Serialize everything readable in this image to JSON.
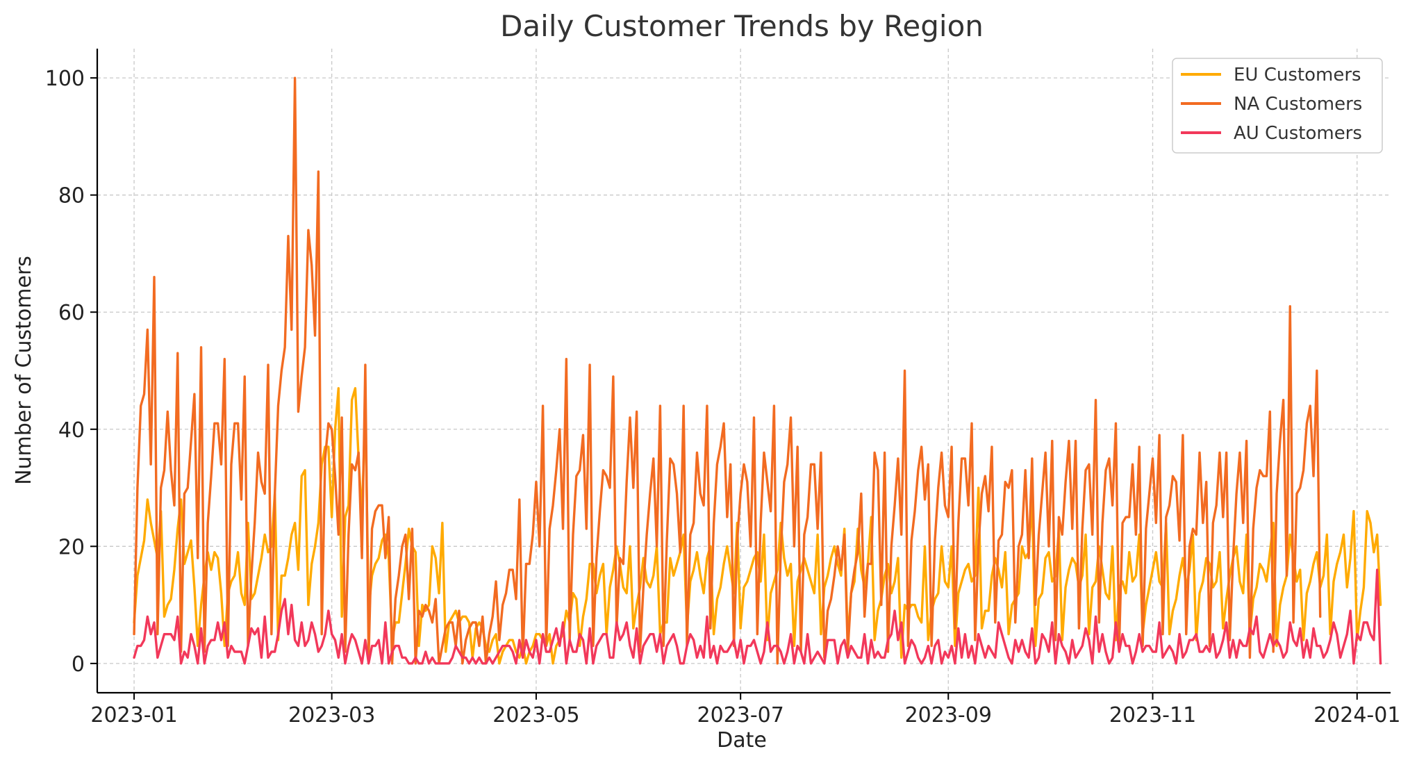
{
  "chart_data": {
    "type": "line",
    "title": "Daily Customer Trends by Region",
    "xlabel": "Date",
    "ylabel": "Number of Customers",
    "x_axis": "date",
    "xlim": [
      "2022-12-21",
      "2024-01-11"
    ],
    "ylim": [
      -5,
      105
    ],
    "x_ticks": [
      "2023-01-01",
      "2023-03-01",
      "2023-05-01",
      "2023-07-01",
      "2023-09-01",
      "2023-11-01",
      "2024-01-01"
    ],
    "x_tick_labels": [
      "2023-01",
      "2023-03",
      "2023-05",
      "2023-07",
      "2023-09",
      "2023-11",
      "2024-01"
    ],
    "y_ticks": [
      0,
      20,
      40,
      60,
      80,
      100
    ],
    "y_tick_labels": [
      "0",
      "20",
      "40",
      "60",
      "80",
      "100"
    ],
    "grid": true,
    "legend_position": "top-right",
    "x_start": "2023-01-01",
    "x_step": "1 day",
    "series": [
      {
        "name": "EU Customers",
        "color": "#FFAA00",
        "values": [
          7,
          15,
          18,
          21,
          28,
          24,
          21,
          18,
          26,
          8,
          10,
          11,
          16,
          23,
          28,
          17,
          19,
          21,
          13,
          3,
          10,
          15,
          19,
          16,
          19,
          18,
          12,
          3,
          12,
          14,
          15,
          19,
          12,
          10,
          24,
          11,
          12,
          15,
          18,
          22,
          19,
          20,
          29,
          4,
          15,
          15,
          18,
          22,
          24,
          16,
          32,
          33,
          10,
          17,
          20,
          24,
          34,
          37,
          37,
          25,
          40,
          47,
          8,
          25,
          27,
          45,
          47,
          35,
          25,
          44,
          9,
          15,
          17,
          18,
          21,
          22,
          18,
          4,
          7,
          7,
          12,
          17,
          23,
          20,
          19,
          3,
          10,
          9,
          10,
          20,
          18,
          12,
          24,
          2,
          7,
          8,
          9,
          7,
          8,
          8,
          7,
          1,
          6,
          7,
          6,
          3,
          2,
          4,
          5,
          0,
          2,
          3,
          4,
          4,
          2,
          1,
          3,
          0,
          2,
          3,
          5,
          5,
          4,
          3,
          5,
          0,
          3,
          4,
          5,
          9,
          7,
          12,
          11,
          3,
          8,
          11,
          17,
          17,
          12,
          15,
          17,
          5,
          13,
          16,
          20,
          17,
          13,
          12,
          20,
          6,
          10,
          13,
          18,
          14,
          13,
          15,
          20,
          5,
          7,
          7,
          18,
          15,
          17,
          19,
          22,
          6,
          14,
          16,
          19,
          15,
          12,
          18,
          20,
          5,
          11,
          13,
          17,
          20,
          16,
          12,
          24,
          6,
          13,
          14,
          16,
          18,
          19,
          14,
          22,
          4,
          12,
          14,
          16,
          24,
          18,
          15,
          17,
          3,
          14,
          16,
          18,
          16,
          14,
          12,
          22,
          5,
          13,
          15,
          18,
          20,
          17,
          15,
          23,
          4,
          12,
          14,
          23,
          16,
          13,
          17,
          25,
          4,
          9,
          11,
          15,
          17,
          12,
          14,
          18,
          1,
          10,
          9,
          10,
          10,
          8,
          7,
          20,
          4,
          9,
          11,
          12,
          20,
          14,
          13,
          20,
          3,
          12,
          14,
          16,
          17,
          14,
          15,
          30,
          6,
          9,
          9,
          15,
          18,
          16,
          13,
          19,
          5,
          10,
          11,
          12,
          20,
          18,
          19,
          28,
          3,
          11,
          12,
          18,
          19,
          14,
          15,
          23,
          4,
          13,
          16,
          18,
          17,
          13,
          15,
          22,
          5,
          13,
          14,
          20,
          16,
          12,
          11,
          20,
          4,
          13,
          14,
          12,
          19,
          14,
          15,
          22,
          5,
          10,
          13,
          16,
          19,
          14,
          13,
          24,
          5,
          9,
          11,
          15,
          18,
          13,
          16,
          22,
          4,
          12,
          14,
          18,
          17,
          13,
          14,
          19,
          6,
          11,
          15,
          18,
          20,
          14,
          12,
          22,
          5,
          11,
          13,
          17,
          16,
          14,
          19,
          24,
          3,
          10,
          13,
          15,
          22,
          18,
          14,
          16,
          4,
          12,
          14,
          17,
          19,
          13,
          15,
          22,
          5,
          14,
          17,
          19,
          22,
          13,
          18,
          26,
          4,
          9,
          13,
          26,
          24,
          19,
          22,
          10
        ]
      },
      {
        "name": "NA Customers",
        "color": "#F26B21",
        "values": [
          5,
          30,
          44,
          46,
          57,
          34,
          66,
          5,
          30,
          33,
          43,
          33,
          27,
          53,
          2,
          29,
          30,
          38,
          46,
          18,
          54,
          2,
          24,
          32,
          41,
          41,
          34,
          52,
          3,
          34,
          41,
          41,
          28,
          49,
          3,
          15,
          24,
          36,
          31,
          29,
          51,
          5,
          29,
          44,
          50,
          54,
          73,
          57,
          100,
          43,
          49,
          54,
          74,
          68,
          56,
          84,
          5,
          35,
          41,
          40,
          32,
          22,
          42,
          2,
          22,
          34,
          33,
          36,
          18,
          51,
          1,
          23,
          26,
          27,
          27,
          18,
          25,
          0,
          11,
          15,
          20,
          22,
          11,
          23,
          0,
          9,
          8,
          10,
          9,
          7,
          11,
          0,
          3,
          6,
          7,
          7,
          3,
          9,
          0,
          4,
          6,
          7,
          7,
          3,
          8,
          0,
          5,
          8,
          14,
          4,
          10,
          12,
          16,
          16,
          11,
          28,
          1,
          17,
          17,
          22,
          31,
          20,
          44,
          3,
          23,
          27,
          33,
          40,
          23,
          52,
          4,
          22,
          32,
          33,
          39,
          23,
          51,
          3,
          18,
          26,
          33,
          32,
          30,
          49,
          6,
          18,
          17,
          31,
          42,
          30,
          43,
          2,
          13,
          22,
          29,
          35,
          20,
          44,
          3,
          21,
          35,
          34,
          29,
          19,
          44,
          3,
          22,
          24,
          36,
          29,
          27,
          44,
          6,
          24,
          34,
          37,
          41,
          25,
          34,
          3,
          21,
          29,
          34,
          31,
          20,
          42,
          5,
          24,
          36,
          31,
          26,
          44,
          0,
          19,
          31,
          34,
          42,
          20,
          37,
          2,
          22,
          25,
          34,
          34,
          23,
          36,
          1,
          9,
          11,
          15,
          20,
          16,
          22,
          2,
          12,
          16,
          19,
          29,
          8,
          17,
          17,
          36,
          33,
          10,
          36,
          2,
          20,
          27,
          35,
          22,
          50,
          3,
          21,
          26,
          33,
          37,
          28,
          34,
          3,
          21,
          30,
          36,
          27,
          25,
          37,
          6,
          24,
          35,
          35,
          27,
          41,
          4,
          20,
          29,
          32,
          26,
          37,
          7,
          21,
          22,
          31,
          30,
          33,
          7,
          20,
          22,
          33,
          18,
          35,
          10,
          22,
          29,
          36,
          20,
          38,
          4,
          25,
          22,
          31,
          38,
          23,
          38,
          6,
          23,
          33,
          34,
          22,
          45,
          7,
          24,
          33,
          35,
          27,
          41,
          3,
          24,
          25,
          25,
          34,
          22,
          37,
          3,
          23,
          29,
          35,
          24,
          39,
          5,
          25,
          27,
          32,
          31,
          21,
          39,
          5,
          20,
          23,
          22,
          36,
          24,
          31,
          3,
          24,
          27,
          36,
          25,
          36,
          4,
          18,
          29,
          36,
          24,
          38,
          1,
          23,
          30,
          33,
          32,
          32,
          43,
          2,
          29,
          38,
          45,
          15,
          61,
          7,
          29,
          30,
          33,
          41,
          44,
          32,
          50,
          8
        ]
      },
      {
        "name": "AU Customers",
        "color": "#F2385A",
        "values": [
          1,
          3,
          3,
          4,
          8,
          5,
          7,
          1,
          3,
          5,
          5,
          5,
          4,
          8,
          0,
          2,
          1,
          5,
          3,
          0,
          6,
          0,
          3,
          4,
          4,
          7,
          4,
          7,
          1,
          3,
          2,
          2,
          2,
          0,
          3,
          6,
          5,
          6,
          1,
          8,
          1,
          2,
          2,
          5,
          9,
          11,
          5,
          10,
          4,
          3,
          7,
          3,
          4,
          7,
          5,
          2,
          3,
          5,
          9,
          5,
          4,
          1,
          5,
          0,
          3,
          5,
          4,
          2,
          0,
          4,
          0,
          3,
          3,
          4,
          0,
          7,
          0,
          2,
          3,
          3,
          1,
          1,
          0,
          0,
          1,
          0,
          0,
          2,
          0,
          1,
          0,
          0,
          0,
          0,
          0,
          1,
          3,
          2,
          1,
          1,
          0,
          1,
          0,
          1,
          0,
          0,
          1,
          0,
          1,
          2,
          3,
          3,
          3,
          2,
          0,
          4,
          1,
          4,
          2,
          1,
          4,
          0,
          5,
          2,
          2,
          4,
          6,
          3,
          7,
          0,
          4,
          2,
          2,
          5,
          4,
          0,
          6,
          0,
          3,
          4,
          5,
          5,
          1,
          1,
          7,
          4,
          5,
          7,
          3,
          1,
          6,
          0,
          3,
          4,
          5,
          5,
          2,
          5,
          0,
          3,
          4,
          5,
          3,
          0,
          0,
          3,
          5,
          4,
          1,
          3,
          1,
          8,
          1,
          3,
          0,
          3,
          2,
          2,
          3,
          4,
          1,
          4,
          0,
          3,
          3,
          4,
          2,
          0,
          2,
          7,
          2,
          3,
          3,
          2,
          0,
          2,
          5,
          0,
          3,
          2,
          0,
          5,
          0,
          1,
          2,
          1,
          0,
          4,
          4,
          4,
          0,
          3,
          4,
          1,
          3,
          2,
          1,
          1,
          5,
          0,
          4,
          1,
          2,
          1,
          1,
          4,
          5,
          9,
          4,
          7,
          0,
          2,
          4,
          3,
          1,
          0,
          1,
          3,
          0,
          3,
          4,
          0,
          2,
          1,
          3,
          0,
          6,
          1,
          5,
          1,
          3,
          0,
          5,
          3,
          1,
          3,
          2,
          1,
          7,
          5,
          3,
          1,
          0,
          4,
          2,
          4,
          2,
          1,
          6,
          0,
          1,
          5,
          4,
          2,
          7,
          0,
          5,
          3,
          2,
          0,
          4,
          1,
          2,
          3,
          6,
          4,
          0,
          8,
          2,
          5,
          2,
          0,
          1,
          7,
          2,
          5,
          3,
          3,
          0,
          2,
          5,
          2,
          3,
          3,
          2,
          2,
          7,
          1,
          2,
          3,
          2,
          0,
          5,
          1,
          2,
          4,
          4,
          5,
          2,
          2,
          3,
          2,
          5,
          1,
          2,
          4,
          7,
          1,
          4,
          1,
          4,
          3,
          3,
          6,
          5,
          8,
          2,
          1,
          3,
          5,
          3,
          4,
          3,
          1,
          2,
          7,
          4,
          3,
          6,
          1,
          4,
          1,
          6,
          3,
          3,
          1,
          2,
          4,
          7,
          5,
          1,
          3,
          5,
          9,
          0,
          5,
          4,
          7,
          7,
          5,
          4,
          16,
          0
        ]
      }
    ]
  }
}
